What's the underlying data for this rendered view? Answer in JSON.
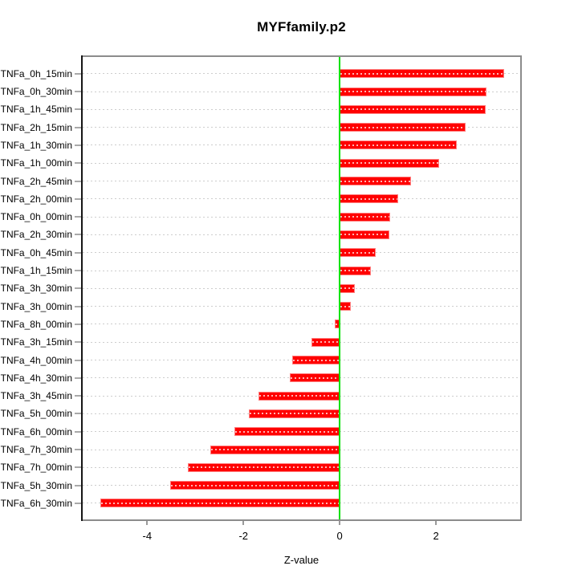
{
  "chart_data": {
    "type": "bar",
    "orientation": "horizontal",
    "title": "MYFfamily.p2",
    "xlabel": "Z-value",
    "categories": [
      "TNFa_0h_15min",
      "TNFa_0h_30min",
      "TNFa_1h_45min",
      "TNFa_2h_15min",
      "TNFa_1h_30min",
      "TNFa_1h_00min",
      "TNFa_2h_45min",
      "TNFa_2h_00min",
      "TNFa_0h_00min",
      "TNFa_2h_30min",
      "TNFa_0h_45min",
      "TNFa_1h_15min",
      "TNFa_3h_30min",
      "TNFa_3h_00min",
      "TNFa_8h_00min",
      "TNFa_3h_15min",
      "TNFa_4h_00min",
      "TNFa_4h_30min",
      "TNFa_3h_45min",
      "TNFa_5h_00min",
      "TNFa_6h_00min",
      "TNFa_7h_30min",
      "TNFa_7h_00min",
      "TNFa_5h_30min",
      "TNFa_6h_30min"
    ],
    "values": [
      3.42,
      3.05,
      3.03,
      2.62,
      2.43,
      2.06,
      1.49,
      1.21,
      1.05,
      1.03,
      0.75,
      0.64,
      0.31,
      0.23,
      -0.1,
      -0.58,
      -0.98,
      -1.03,
      -1.68,
      -1.89,
      -2.18,
      -2.68,
      -3.16,
      -3.53,
      -4.97
    ],
    "x_ticks": [
      -4,
      -2,
      0,
      2
    ],
    "xlim": [
      -5.34,
      3.75
    ],
    "grid": "horizontal dotted line per category",
    "zero_line": true,
    "legend": "none",
    "colors": {
      "bar_fill": "#ff0000",
      "bar_border": "#ff8080",
      "bar_center_dash": "#ffffff",
      "zero_line": "#00e100",
      "grid_line": "#cdcdcd",
      "box_border": "#8c8c8c",
      "axis_line": "#151515",
      "text": "#000000",
      "background": "#ffffff"
    }
  }
}
